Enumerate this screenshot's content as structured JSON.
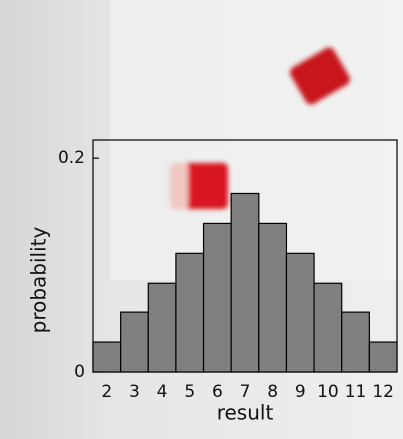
{
  "chart_data": {
    "type": "bar",
    "categories": [
      "2",
      "3",
      "4",
      "5",
      "6",
      "7",
      "8",
      "9",
      "10",
      "11",
      "12"
    ],
    "values": [
      0.028,
      0.056,
      0.083,
      0.111,
      0.139,
      0.167,
      0.139,
      0.111,
      0.083,
      0.056,
      0.028
    ],
    "color": "#808080",
    "xlabel": "result",
    "ylabel": "probability",
    "ylim": [
      0,
      0.217
    ],
    "yticks": [
      0,
      0.2
    ]
  }
}
